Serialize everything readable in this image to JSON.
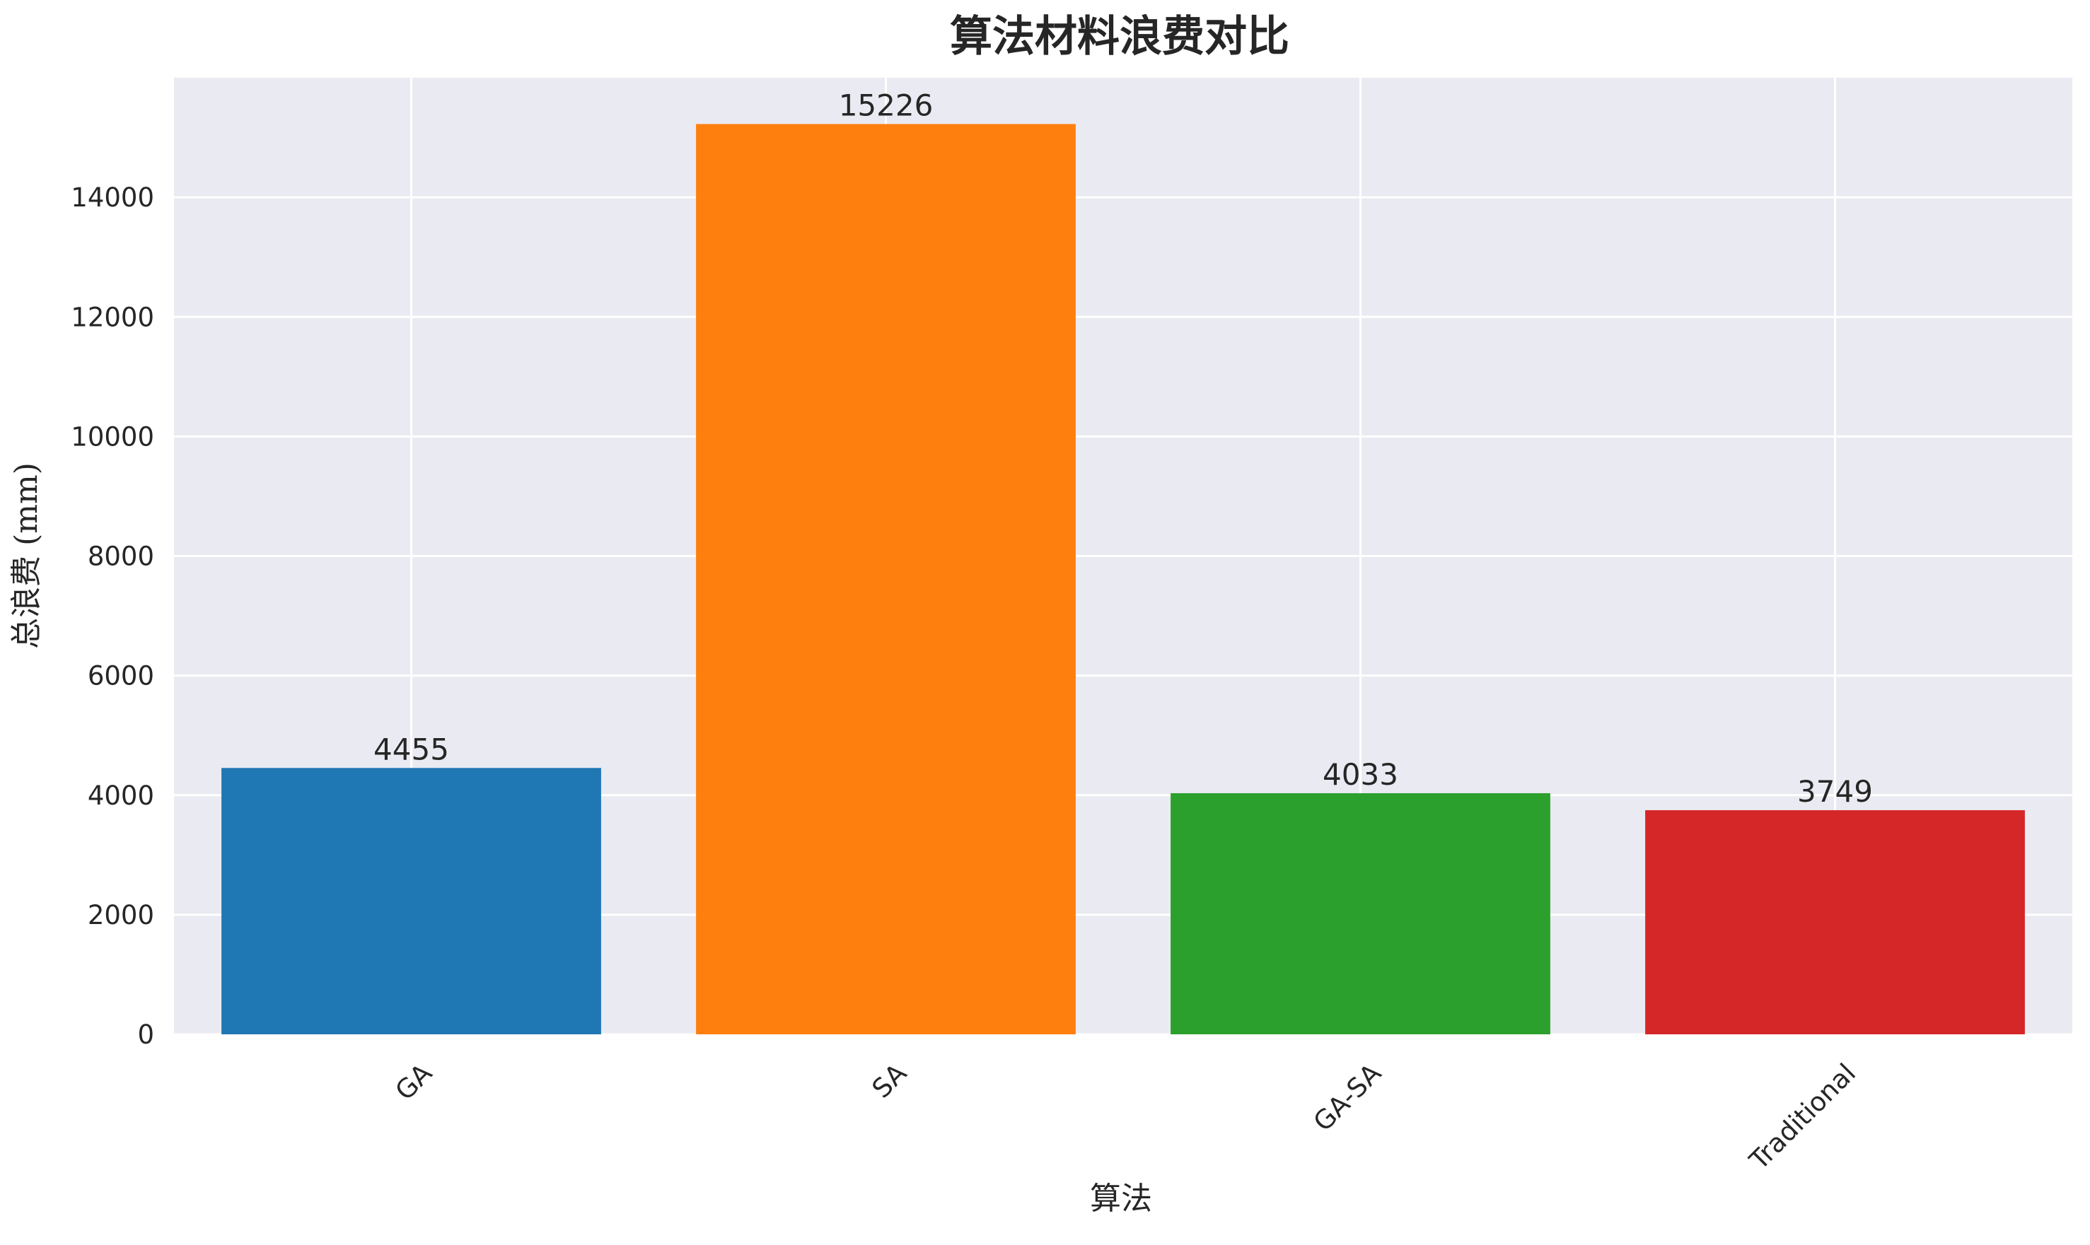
{
  "chart_data": {
    "type": "bar",
    "title": "算法材料浪费对比",
    "xlabel": "算法",
    "ylabel": "总浪费 (mm)",
    "categories": [
      "GA",
      "SA",
      "GA-SA",
      "Traditional"
    ],
    "values": [
      4455,
      15226,
      4033,
      3749
    ],
    "data_labels": [
      "4455",
      "15226",
      "4033",
      "3749"
    ],
    "colors": [
      "#1f77b4",
      "#ff7f0e",
      "#2ca02c",
      "#d62728"
    ],
    "ylim": [
      0,
      16000
    ],
    "yticks": [
      0,
      2000,
      4000,
      6000,
      8000,
      10000,
      12000,
      14000
    ],
    "ytick_labels": [
      "0",
      "2000",
      "4000",
      "6000",
      "8000",
      "10000",
      "12000",
      "14000"
    ],
    "grid": true,
    "background": "#eaeaf2",
    "grid_color": "#ffffff",
    "text_color": "#262626"
  }
}
